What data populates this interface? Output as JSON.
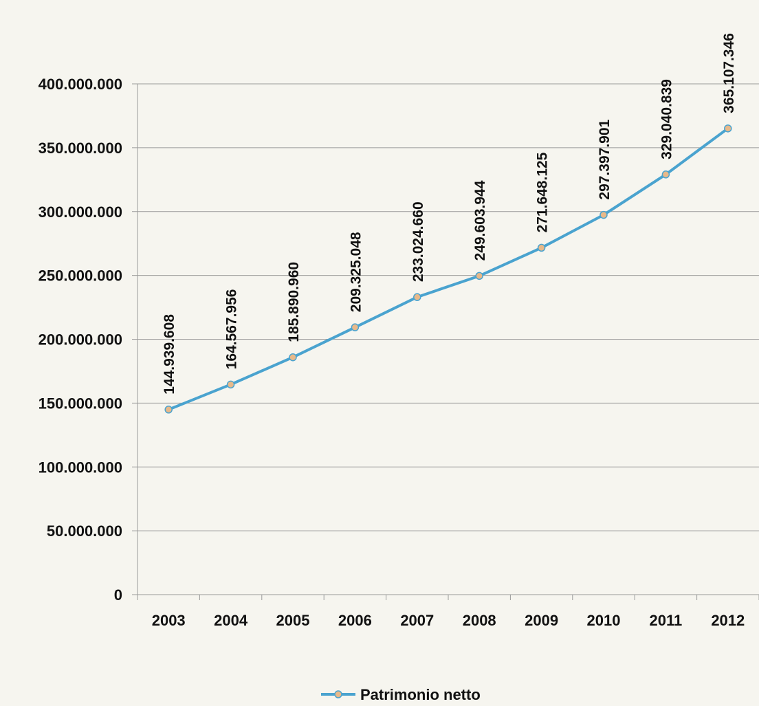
{
  "chart_data": {
    "type": "line",
    "title": "",
    "xlabel": "",
    "ylabel": "",
    "categories": [
      "2003",
      "2004",
      "2005",
      "2006",
      "2007",
      "2008",
      "2009",
      "2010",
      "2011",
      "2012"
    ],
    "series": [
      {
        "name": "Patrimonio netto",
        "values": [
          144939608,
          164567956,
          185890960,
          209325048,
          233024660,
          249603944,
          271648125,
          297397901,
          329040839,
          365107346
        ],
        "value_labels": [
          "144.939.608",
          "164.567.956",
          "185.890.960",
          "209.325.048",
          "233.024.660",
          "249.603.944",
          "271.648.125",
          "297.397.901",
          "329.040.839",
          "365.107.346"
        ],
        "color": "#4aa3cf",
        "marker_color": "#e8b98a"
      }
    ],
    "ylim": [
      0,
      400000000
    ],
    "yticks": [
      0,
      50000000,
      100000000,
      150000000,
      200000000,
      250000000,
      300000000,
      350000000,
      400000000
    ],
    "ytick_labels": [
      "0",
      "50.000.000",
      "100.000.000",
      "150.000.000",
      "200.000.000",
      "250.000.000",
      "300.000.000",
      "350.000.000",
      "400.000.000"
    ],
    "grid": true,
    "legend_position": "bottom-center"
  }
}
